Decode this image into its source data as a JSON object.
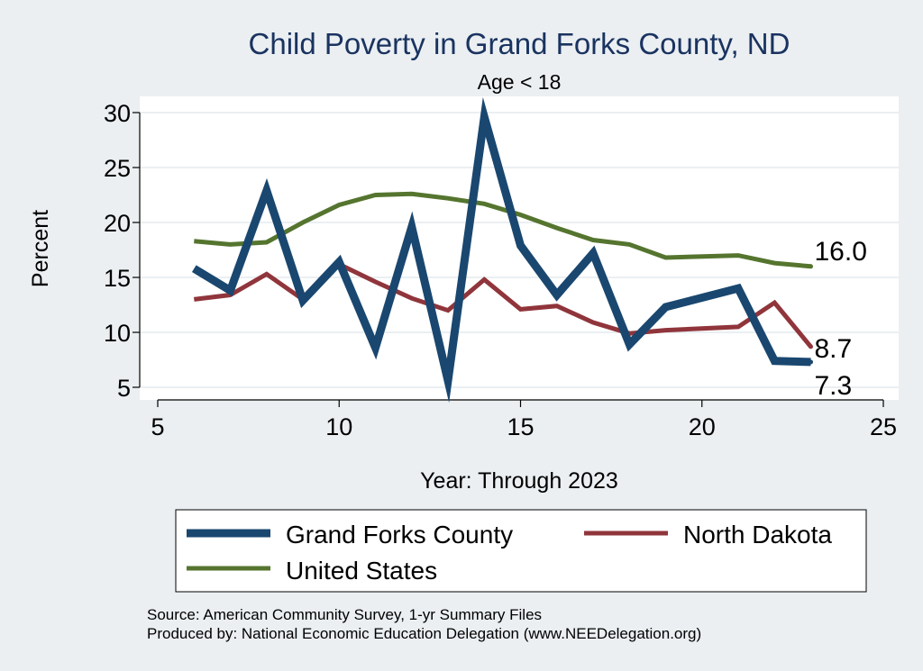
{
  "chart_data": {
    "type": "line",
    "title": "Child Poverty in Grand Forks County, ND",
    "subtitle": "Age < 18",
    "xlabel": "Year: Through 2023",
    "ylabel": "Percent",
    "xlim": [
      5,
      25
    ],
    "ylim": [
      4,
      31
    ],
    "xticks": [
      5,
      10,
      15,
      20,
      25
    ],
    "yticks": [
      5,
      10,
      15,
      20,
      25,
      30
    ],
    "grid": true,
    "legend_position": "bottom",
    "x": [
      6,
      7,
      8,
      9,
      10,
      11,
      12,
      13,
      14,
      15,
      16,
      17,
      18,
      19,
      21,
      22,
      23
    ],
    "series": [
      {
        "name": "Grand Forks County",
        "color": "#1a476f",
        "values": [
          15.8,
          13.8,
          22.9,
          12.9,
          16.4,
          8.6,
          19.6,
          5.6,
          29.6,
          17.9,
          13.4,
          17.2,
          8.9,
          12.3,
          14.0,
          7.4,
          7.3
        ],
        "end_label": "7.3"
      },
      {
        "name": "North Dakota",
        "color": "#90353b",
        "values": [
          13.0,
          13.4,
          15.3,
          13.0,
          16.2,
          14.6,
          13.1,
          12.0,
          14.8,
          12.1,
          12.4,
          10.9,
          9.9,
          10.2,
          10.5,
          12.7,
          8.7
        ],
        "end_label": "8.7"
      },
      {
        "name": "United States",
        "color": "#55752f",
        "values": [
          18.3,
          18.0,
          18.2,
          20.0,
          21.6,
          22.5,
          22.6,
          22.2,
          21.7,
          20.7,
          19.5,
          18.4,
          18.0,
          16.8,
          17.0,
          16.3,
          16.0
        ],
        "end_label": "16.0"
      }
    ]
  },
  "notes": {
    "source": "Source: American Community Survey, 1-yr Summary Files",
    "produced": "Produced by: National Economic Education Delegation (www.NEEDelegation.org)"
  }
}
